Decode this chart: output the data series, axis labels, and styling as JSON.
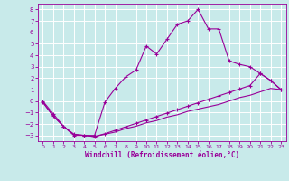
{
  "xlabel": "Windchill (Refroidissement éolien,°C)",
  "background_color": "#c8eaea",
  "grid_color": "#ffffff",
  "line_color": "#990099",
  "xlim": [
    -0.5,
    23.5
  ],
  "ylim": [
    -3.5,
    8.5
  ],
  "xticks": [
    0,
    1,
    2,
    3,
    4,
    5,
    6,
    7,
    8,
    9,
    10,
    11,
    12,
    13,
    14,
    15,
    16,
    17,
    18,
    19,
    20,
    21,
    22,
    23
  ],
  "yticks": [
    -3,
    -2,
    -1,
    0,
    1,
    2,
    3,
    4,
    5,
    6,
    7,
    8
  ],
  "line1_x": [
    0,
    1,
    2,
    3,
    4,
    5,
    6,
    7,
    8,
    9,
    10,
    11,
    12,
    13,
    14,
    15,
    16,
    17,
    18,
    19,
    20,
    21,
    22,
    23
  ],
  "line1_y": [
    0.0,
    -1.1,
    -2.2,
    -3.0,
    -3.0,
    -3.0,
    -0.1,
    1.1,
    2.1,
    2.7,
    4.8,
    4.1,
    5.4,
    6.7,
    7.0,
    8.0,
    6.3,
    6.3,
    3.5,
    3.2,
    3.0,
    2.4,
    1.8,
    1.0
  ],
  "line2_x": [
    0,
    1,
    2,
    3,
    4,
    5,
    6,
    7,
    8,
    9,
    10,
    11,
    12,
    13,
    14,
    15,
    16,
    17,
    18,
    19,
    20,
    21,
    22,
    23
  ],
  "line2_y": [
    -0.1,
    -1.3,
    -2.2,
    -2.9,
    -3.0,
    -3.1,
    -2.85,
    -2.55,
    -2.25,
    -1.95,
    -1.65,
    -1.35,
    -1.05,
    -0.75,
    -0.45,
    -0.15,
    0.15,
    0.45,
    0.75,
    1.05,
    1.35,
    2.4,
    1.8,
    1.0
  ],
  "line3_x": [
    0,
    1,
    2,
    3,
    4,
    5,
    6,
    7,
    8,
    9,
    10,
    11,
    12,
    13,
    14,
    15,
    16,
    17,
    18,
    19,
    20,
    21,
    22,
    23
  ],
  "line3_y": [
    -0.1,
    -1.3,
    -2.2,
    -2.9,
    -3.0,
    -3.1,
    -2.9,
    -2.7,
    -2.4,
    -2.2,
    -1.9,
    -1.7,
    -1.4,
    -1.2,
    -0.9,
    -0.7,
    -0.5,
    -0.3,
    0.0,
    0.3,
    0.5,
    0.8,
    1.1,
    1.0
  ]
}
